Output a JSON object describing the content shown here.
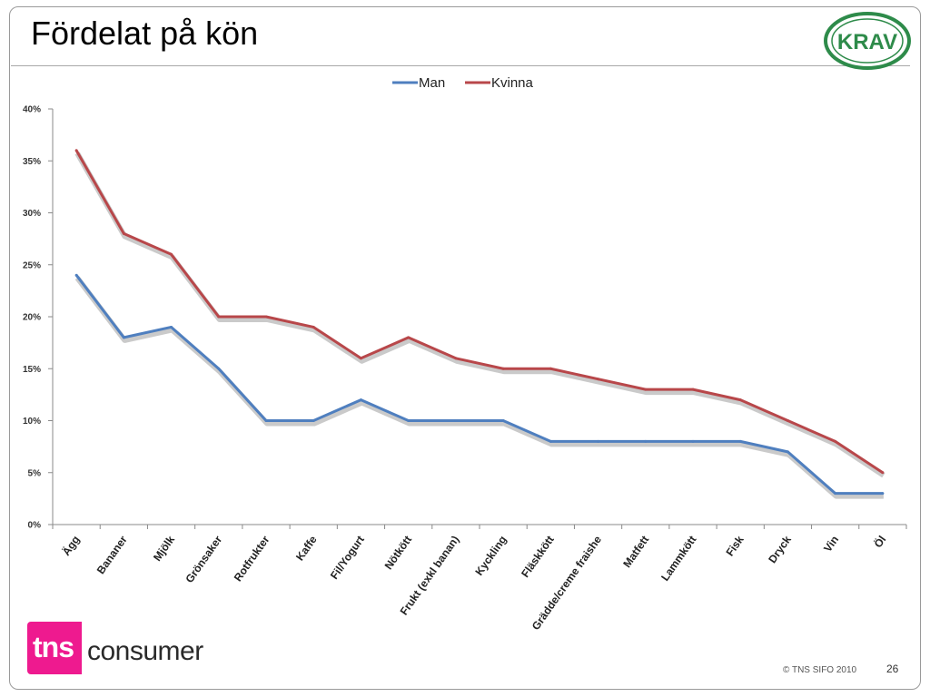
{
  "slide": {
    "title": "Fördelat på kön",
    "logo_text": "KRAV",
    "brand_tns": "tns",
    "brand_consumer": "consumer",
    "copyright": "© TNS SIFO 2010",
    "page_number": "26"
  },
  "colors": {
    "man": "#4f7fbf",
    "kvinna": "#b8474a",
    "shadow": "#bdbdbd",
    "brand_pink": "#ee1a8f",
    "krav_green": "#2e8b4a"
  },
  "chart_data": {
    "type": "line",
    "title": "",
    "xlabel": "",
    "ylabel": "",
    "ylim": [
      0,
      40
    ],
    "y_ticks": [
      "0%",
      "5%",
      "10%",
      "15%",
      "20%",
      "25%",
      "30%",
      "35%",
      "40%"
    ],
    "y_tick_values": [
      0,
      5,
      10,
      15,
      20,
      25,
      30,
      35,
      40
    ],
    "grid": false,
    "legend": "top-center",
    "categories": [
      "Ägg",
      "Bananer",
      "Mjölk",
      "Grönsaker",
      "Rotfrukter",
      "Kaffe",
      "Fil/Yogurt",
      "Nötkött",
      "Frukt (exkl banan)",
      "Kyckling",
      "Fläskkött",
      "Grädde/creme fraishe",
      "Matfett",
      "Lammkött",
      "Fisk",
      "Dryck",
      "Vin",
      "Öl"
    ],
    "series": [
      {
        "name": "Man",
        "values": [
          24,
          18,
          19,
          15,
          10,
          10,
          12,
          10,
          10,
          10,
          8,
          8,
          8,
          8,
          8,
          7,
          3,
          3
        ]
      },
      {
        "name": "Kvinna",
        "values": [
          36,
          28,
          26,
          20,
          20,
          19,
          16,
          18,
          16,
          15,
          15,
          14,
          13,
          13,
          12,
          10,
          8,
          5
        ]
      }
    ]
  }
}
